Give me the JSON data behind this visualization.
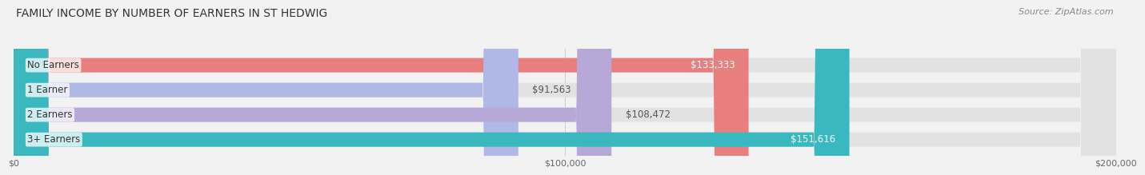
{
  "title": "FAMILY INCOME BY NUMBER OF EARNERS IN ST HEDWIG",
  "source": "Source: ZipAtlas.com",
  "categories": [
    "No Earners",
    "1 Earner",
    "2 Earners",
    "3+ Earners"
  ],
  "values": [
    133333,
    91563,
    108472,
    151616
  ],
  "bar_colors": [
    "#e87e7e",
    "#b0b8e8",
    "#b8a8d8",
    "#3ab8c0"
  ],
  "value_labels": [
    "$133,333",
    "$91,563",
    "$108,472",
    "$151,616"
  ],
  "value_inside": [
    true,
    false,
    false,
    true
  ],
  "xlim": [
    0,
    200000
  ],
  "xticks": [
    0,
    100000,
    200000
  ],
  "xtick_labels": [
    "$0",
    "$100,000",
    "$200,000"
  ],
  "background_color": "#f2f2f2",
  "bar_bg_color": "#e2e2e2",
  "title_fontsize": 10,
  "source_fontsize": 8,
  "label_fontsize": 8.5,
  "value_fontsize": 8.5,
  "bar_height": 0.58
}
